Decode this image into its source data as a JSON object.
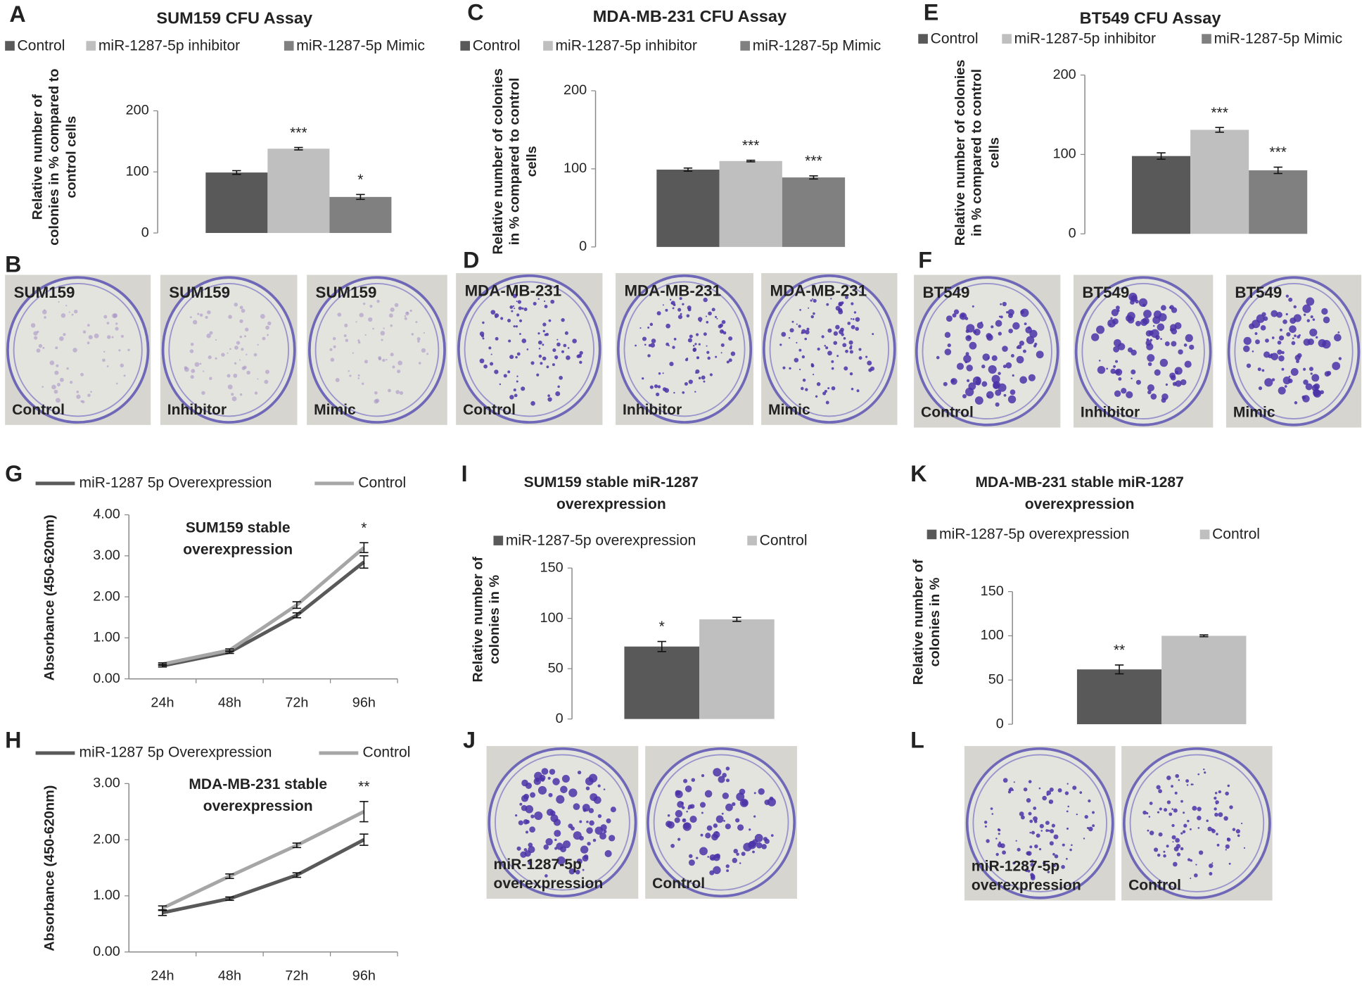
{
  "chart_data": [
    {
      "type": "bar",
      "panel": "A",
      "title": "SUM159 CFU Assay",
      "y_label": "Relative number of colonies in % compared to control cells",
      "categories": [
        null
      ],
      "series": [
        {
          "name": "Control",
          "color": "#595959",
          "values": [
            99
          ],
          "errors": [
            3
          ],
          "labels": [
            null
          ]
        },
        {
          "name": "miR-1287-5p inhibitor",
          "color": "#bfbfbf",
          "values": [
            138
          ],
          "errors": [
            2
          ],
          "labels": [
            "***"
          ]
        },
        {
          "name": "miR-1287-5p Mimic",
          "color": "#808080",
          "values": [
            59
          ],
          "errors": [
            4
          ],
          "labels": [
            "*"
          ]
        }
      ],
      "ylim": [
        0,
        200
      ],
      "yticks": [
        0,
        100,
        200
      ]
    },
    {
      "type": "bar",
      "panel": "C",
      "title": "MDA-MB-231 CFU Assay",
      "y_label": "Relative number of colonies in % compared to control cells",
      "categories": [
        null
      ],
      "series": [
        {
          "name": "Control",
          "color": "#595959",
          "values": [
            99
          ],
          "errors": [
            2
          ],
          "labels": [
            null
          ]
        },
        {
          "name": "miR-1287-5p inhibitor",
          "color": "#bfbfbf",
          "values": [
            110
          ],
          "errors": [
            1
          ],
          "labels": [
            "***"
          ]
        },
        {
          "name": "miR-1287-5p Mimic",
          "color": "#808080",
          "values": [
            89
          ],
          "errors": [
            2
          ],
          "labels": [
            "***"
          ]
        }
      ],
      "ylim": [
        0,
        200
      ],
      "yticks": [
        0,
        100,
        200
      ]
    },
    {
      "type": "bar",
      "panel": "E",
      "title": "BT549 CFU Assay",
      "y_label": "Relative number of colonies in % compared to control cells",
      "categories": [
        null
      ],
      "series": [
        {
          "name": "Control",
          "color": "#595959",
          "values": [
            98
          ],
          "errors": [
            4
          ],
          "labels": [
            null
          ]
        },
        {
          "name": "miR-1287-5p inhibitor",
          "color": "#bfbfbf",
          "values": [
            131
          ],
          "errors": [
            3
          ],
          "labels": [
            "***"
          ]
        },
        {
          "name": "miR-1287-5p Mimic",
          "color": "#808080",
          "values": [
            80
          ],
          "errors": [
            4
          ],
          "labels": [
            "***"
          ]
        }
      ],
      "ylim": [
        0,
        200
      ],
      "yticks": [
        0,
        100,
        200
      ]
    },
    {
      "type": "line",
      "panel": "G",
      "title": "SUM159 stable overexpression",
      "y_label": "Absorbance (450-620nm)",
      "categories": [
        "24h",
        "48h",
        "72h",
        "96h"
      ],
      "series": [
        {
          "name": "miR-1287 5p Overexpression",
          "color": "#595959",
          "values": [
            0.32,
            0.65,
            1.55,
            2.85
          ],
          "errors": [
            0.03,
            0.03,
            0.06,
            0.15
          ],
          "labels": [
            null,
            null,
            null,
            null
          ]
        },
        {
          "name": "Control",
          "color": "#a6a6a6",
          "values": [
            0.36,
            0.7,
            1.8,
            3.2
          ],
          "errors": [
            0.03,
            0.03,
            0.08,
            0.12
          ],
          "labels": [
            null,
            null,
            null,
            "*"
          ]
        }
      ],
      "ylim": [
        0,
        4
      ],
      "yticks": [
        {
          "value": 0,
          "label": "0.00"
        },
        {
          "value": 1,
          "label": "1.00"
        },
        {
          "value": 2,
          "label": "2.00"
        },
        {
          "value": 3,
          "label": "3.00"
        },
        {
          "value": 4,
          "label": "4.00"
        }
      ]
    },
    {
      "type": "line",
      "panel": "H",
      "title": "MDA-MB-231 stable overexpression",
      "y_label": "Absorbance (450-620nm)",
      "categories": [
        "24h",
        "48h",
        "72h",
        "96h"
      ],
      "series": [
        {
          "name": "miR-1287 5p Overexpression",
          "color": "#595959",
          "values": [
            0.7,
            0.95,
            1.37,
            2.0
          ],
          "errors": [
            0.05,
            0.03,
            0.04,
            0.1
          ],
          "labels": [
            null,
            null,
            null,
            null
          ]
        },
        {
          "name": "Control",
          "color": "#a6a6a6",
          "values": [
            0.78,
            1.35,
            1.9,
            2.5
          ],
          "errors": [
            0.04,
            0.04,
            0.04,
            0.18
          ],
          "labels": [
            null,
            null,
            null,
            "**"
          ]
        }
      ],
      "ylim": [
        0,
        3
      ],
      "yticks": [
        {
          "value": 0,
          "label": "0.00"
        },
        {
          "value": 1,
          "label": "1.00"
        },
        {
          "value": 2,
          "label": "2.00"
        },
        {
          "value": 3,
          "label": "3.00"
        }
      ]
    },
    {
      "type": "bar",
      "panel": "I",
      "title": "SUM159 stable miR-1287 overexpression",
      "y_label": "Relative number of colonies in %",
      "categories": [
        null
      ],
      "series": [
        {
          "name": "miR-1287-5p overexpression",
          "color": "#595959",
          "values": [
            72
          ],
          "errors": [
            5
          ],
          "labels": [
            "*"
          ]
        },
        {
          "name": "Control",
          "color": "#bfbfbf",
          "values": [
            99
          ],
          "errors": [
            2
          ],
          "labels": [
            null
          ]
        }
      ],
      "ylim": [
        0,
        150
      ],
      "yticks": [
        0,
        50,
        100,
        150
      ]
    },
    {
      "type": "bar",
      "panel": "K",
      "title": "MDA-MB-231 stable miR-1287 overexpression",
      "y_label": "Relative number of colonies in %",
      "categories": [
        null
      ],
      "series": [
        {
          "name": "miR-1287-5p overexpression",
          "color": "#595959",
          "values": [
            62
          ],
          "errors": [
            5
          ],
          "labels": [
            "**"
          ]
        },
        {
          "name": "Control",
          "color": "#bfbfbf",
          "values": [
            100
          ],
          "errors": [
            1
          ],
          "labels": [
            null
          ]
        }
      ],
      "ylim": [
        0,
        150
      ],
      "yticks": [
        0,
        50,
        100,
        150
      ]
    }
  ],
  "photos": [
    {
      "panel": "B",
      "dishes": [
        {
          "label": "SUM159",
          "caption": "Control"
        },
        {
          "label": "SUM159",
          "caption": "Inhibitor"
        },
        {
          "label": "SUM159",
          "caption": "Mimic"
        }
      ]
    },
    {
      "panel": "D",
      "dishes": [
        {
          "label": "MDA-MB-231",
          "caption": "Control"
        },
        {
          "label": "MDA-MB-231",
          "caption": "Inhibitor"
        },
        {
          "label": "MDA-MB-231",
          "caption": "Mimic"
        }
      ]
    },
    {
      "panel": "F",
      "dishes": [
        {
          "label": "BT549",
          "caption": "Control"
        },
        {
          "label": "BT549",
          "caption": "Inhibitor"
        },
        {
          "label": "BT549",
          "caption": "Mimic"
        }
      ]
    },
    {
      "panel": "J",
      "dishes": [
        {
          "caption": "miR-1287-5p overexpression"
        },
        {
          "caption": "Control"
        }
      ]
    },
    {
      "panel": "L",
      "dishes": [
        {
          "caption": "miR-1287-5p overexpression"
        },
        {
          "caption": "Control"
        }
      ]
    }
  ]
}
